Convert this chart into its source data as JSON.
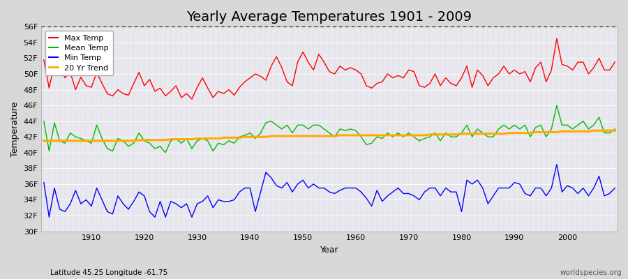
{
  "title": "Yearly Average Temperatures 1901 - 2009",
  "xlabel": "Year",
  "ylabel": "Temperature",
  "subtitle_left": "Latitude 45.25 Longitude -61.75",
  "subtitle_right": "worldspecies.org",
  "years": [
    1901,
    1902,
    1903,
    1904,
    1905,
    1906,
    1907,
    1908,
    1909,
    1910,
    1911,
    1912,
    1913,
    1914,
    1915,
    1916,
    1917,
    1918,
    1919,
    1920,
    1921,
    1922,
    1923,
    1924,
    1925,
    1926,
    1927,
    1928,
    1929,
    1930,
    1931,
    1932,
    1933,
    1934,
    1935,
    1936,
    1937,
    1938,
    1939,
    1940,
    1941,
    1942,
    1943,
    1944,
    1945,
    1946,
    1947,
    1948,
    1949,
    1950,
    1951,
    1952,
    1953,
    1954,
    1955,
    1956,
    1957,
    1958,
    1959,
    1960,
    1961,
    1962,
    1963,
    1964,
    1965,
    1966,
    1967,
    1968,
    1969,
    1970,
    1971,
    1972,
    1973,
    1974,
    1975,
    1976,
    1977,
    1978,
    1979,
    1980,
    1981,
    1982,
    1983,
    1984,
    1985,
    1986,
    1987,
    1988,
    1989,
    1990,
    1991,
    1992,
    1993,
    1994,
    1995,
    1996,
    1997,
    1998,
    1999,
    2000,
    2001,
    2002,
    2003,
    2004,
    2005,
    2006,
    2007,
    2008,
    2009
  ],
  "max_temp": [
    51.8,
    48.2,
    51.3,
    50.8,
    49.5,
    50.2,
    48.0,
    49.6,
    48.5,
    48.3,
    50.2,
    48.8,
    47.5,
    47.2,
    48.0,
    47.5,
    47.3,
    48.8,
    50.2,
    48.5,
    49.3,
    47.8,
    48.2,
    47.2,
    47.8,
    48.5,
    47.0,
    47.5,
    46.8,
    48.3,
    49.5,
    48.2,
    47.0,
    47.8,
    47.5,
    48.0,
    47.3,
    48.3,
    49.0,
    49.5,
    50.0,
    49.7,
    49.2,
    51.0,
    52.2,
    50.8,
    49.0,
    48.5,
    51.5,
    52.8,
    51.5,
    50.5,
    52.5,
    51.5,
    50.3,
    50.0,
    51.0,
    50.5,
    50.8,
    50.5,
    50.0,
    48.5,
    48.2,
    48.8,
    49.0,
    50.0,
    49.5,
    49.8,
    49.5,
    50.5,
    50.3,
    48.5,
    48.3,
    48.8,
    50.0,
    48.5,
    49.5,
    48.8,
    48.5,
    49.5,
    51.0,
    48.3,
    50.5,
    49.8,
    48.5,
    49.5,
    50.0,
    51.0,
    50.0,
    50.5,
    50.0,
    50.3,
    49.0,
    50.8,
    51.5,
    49.0,
    50.5,
    54.5,
    51.2,
    51.0,
    50.5,
    51.5,
    51.5,
    50.0,
    50.8,
    52.0,
    50.5,
    50.5,
    51.5
  ],
  "mean_temp": [
    44.0,
    40.2,
    43.8,
    41.5,
    41.2,
    42.5,
    42.0,
    41.8,
    41.5,
    41.2,
    43.5,
    41.8,
    40.5,
    40.2,
    41.8,
    41.5,
    40.8,
    41.2,
    42.5,
    41.5,
    41.2,
    40.5,
    40.8,
    40.0,
    41.5,
    41.8,
    41.2,
    41.8,
    40.5,
    41.5,
    41.8,
    41.5,
    40.2,
    41.2,
    41.0,
    41.5,
    41.2,
    42.0,
    42.2,
    42.5,
    41.8,
    42.5,
    43.8,
    44.0,
    43.5,
    43.0,
    43.5,
    42.5,
    43.5,
    43.5,
    43.0,
    43.5,
    43.5,
    43.0,
    42.5,
    42.0,
    43.0,
    42.8,
    43.0,
    42.8,
    42.0,
    41.0,
    41.2,
    42.0,
    41.8,
    42.5,
    42.0,
    42.5,
    42.0,
    42.5,
    42.0,
    41.5,
    41.8,
    42.0,
    42.5,
    41.5,
    42.5,
    42.0,
    42.0,
    42.5,
    43.5,
    42.0,
    43.0,
    42.5,
    42.0,
    42.0,
    43.0,
    43.5,
    43.0,
    43.5,
    43.0,
    43.5,
    42.0,
    43.2,
    43.5,
    42.0,
    43.0,
    46.0,
    43.5,
    43.5,
    43.0,
    43.5,
    44.0,
    43.0,
    43.5,
    44.5,
    42.5,
    42.5,
    43.0
  ],
  "min_temp": [
    36.2,
    31.8,
    35.5,
    32.8,
    32.5,
    33.5,
    35.2,
    33.5,
    34.0,
    33.2,
    35.5,
    34.0,
    32.5,
    32.2,
    34.5,
    33.5,
    32.8,
    33.8,
    35.0,
    34.5,
    32.5,
    31.8,
    33.8,
    31.8,
    33.8,
    33.5,
    33.0,
    33.5,
    31.8,
    33.5,
    33.8,
    34.5,
    33.0,
    34.0,
    33.8,
    33.8,
    34.0,
    35.0,
    35.5,
    35.5,
    32.5,
    35.0,
    37.5,
    36.8,
    35.8,
    35.5,
    36.2,
    35.0,
    36.0,
    36.5,
    35.5,
    36.0,
    35.5,
    35.5,
    35.0,
    34.8,
    35.2,
    35.5,
    35.5,
    35.5,
    35.0,
    34.2,
    33.2,
    35.2,
    33.8,
    34.5,
    35.0,
    35.5,
    34.8,
    34.8,
    34.5,
    34.0,
    35.0,
    35.5,
    35.5,
    34.5,
    35.5,
    35.0,
    35.0,
    32.5,
    36.5,
    36.0,
    36.5,
    35.5,
    33.5,
    34.5,
    35.5,
    35.5,
    35.5,
    36.2,
    36.0,
    34.8,
    34.5,
    35.5,
    35.5,
    34.5,
    35.5,
    38.5,
    35.0,
    35.8,
    35.5,
    34.8,
    35.5,
    34.5,
    35.5,
    37.0,
    34.5,
    34.8,
    35.5
  ],
  "trend": [
    41.5,
    41.5,
    41.5,
    41.5,
    41.5,
    41.5,
    41.5,
    41.5,
    41.5,
    41.5,
    41.5,
    41.5,
    41.5,
    41.5,
    41.5,
    41.5,
    41.5,
    41.5,
    41.6,
    41.6,
    41.6,
    41.6,
    41.6,
    41.6,
    41.7,
    41.7,
    41.7,
    41.7,
    41.7,
    41.8,
    41.8,
    41.8,
    41.8,
    41.8,
    41.9,
    41.9,
    41.9,
    41.9,
    42.0,
    42.0,
    42.0,
    42.0,
    42.0,
    42.1,
    42.1,
    42.1,
    42.1,
    42.1,
    42.1,
    42.1,
    42.1,
    42.1,
    42.1,
    42.1,
    42.1,
    42.1,
    42.2,
    42.2,
    42.2,
    42.2,
    42.2,
    42.2,
    42.2,
    42.2,
    42.2,
    42.2,
    42.2,
    42.2,
    42.2,
    42.2,
    42.2,
    42.2,
    42.2,
    42.3,
    42.3,
    42.3,
    42.3,
    42.3,
    42.3,
    42.4,
    42.4,
    42.4,
    42.4,
    42.4,
    42.4,
    42.4,
    42.4,
    42.4,
    42.5,
    42.5,
    42.5,
    42.5,
    42.5,
    42.6,
    42.6,
    42.6,
    42.6,
    42.6,
    42.7,
    42.7,
    42.7,
    42.7,
    42.7,
    42.7,
    42.8,
    42.8,
    42.8,
    42.8,
    42.8
  ],
  "ylim": [
    30,
    56
  ],
  "yticks": [
    30,
    32,
    34,
    36,
    38,
    40,
    42,
    44,
    46,
    48,
    50,
    52,
    54,
    56
  ],
  "ytick_labels": [
    "30F",
    "32F",
    "34F",
    "36F",
    "38F",
    "40F",
    "42F",
    "44F",
    "46F",
    "48F",
    "50F",
    "52F",
    "54F",
    "56F"
  ],
  "xticks": [
    1910,
    1920,
    1930,
    1940,
    1950,
    1960,
    1970,
    1980,
    1990,
    2000
  ],
  "max_color": "#ff0000",
  "mean_color": "#00bb00",
  "min_color": "#0000ff",
  "trend_color": "#ffaa00",
  "bg_color": "#d8d8d8",
  "plot_bg_color": "#e8e8ee",
  "grid_major_color": "#ffffff",
  "grid_minor_color": "#d8d8e0",
  "title_fontsize": 14,
  "axis_label_fontsize": 9,
  "tick_fontsize": 8,
  "legend_fontsize": 8
}
